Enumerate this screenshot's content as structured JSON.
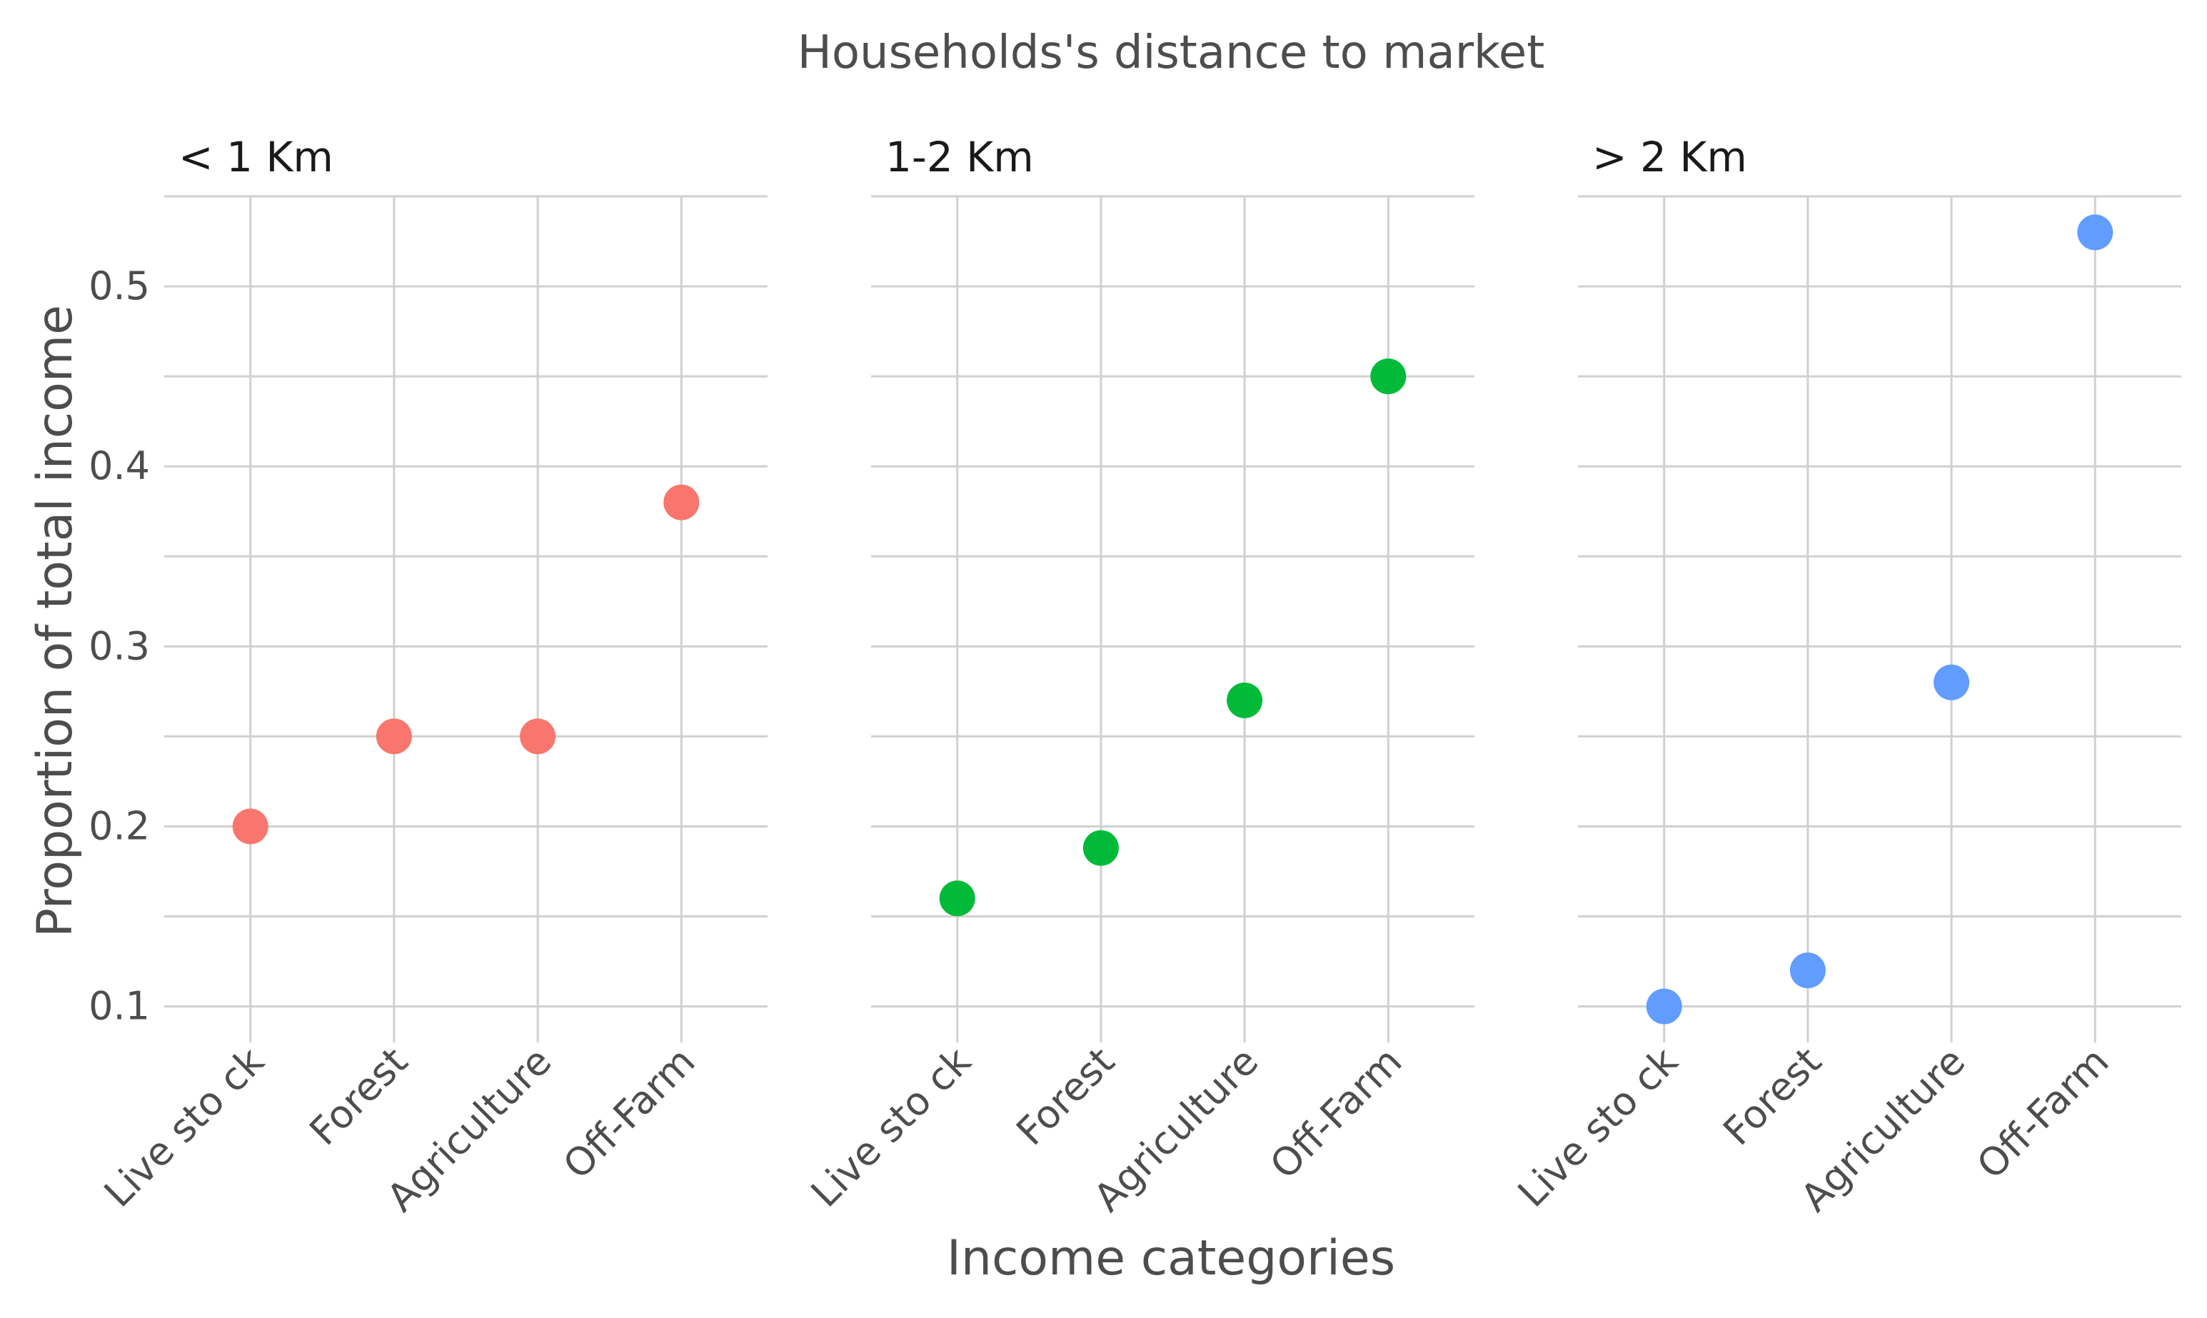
{
  "chart_data": {
    "type": "scatter",
    "title": "Households's distance to market",
    "xlabel": "Income categories",
    "ylabel": "Proportion of total income",
    "categories": [
      "Livestock",
      "Forest",
      "Agriculture",
      "Off-Farm"
    ],
    "x_tick_labels": [
      "Live sto ck",
      "Forest",
      "Agriculture",
      "Off-Farm"
    ],
    "y_ticks": [
      0.1,
      0.2,
      0.3,
      0.4,
      0.5
    ],
    "y_tick_labels": [
      "0.1",
      "0.2",
      "0.3",
      "0.4",
      "0.5"
    ],
    "ylim": [
      0.08,
      0.55
    ],
    "grid": true,
    "legend": "none",
    "facets": [
      {
        "label": "< 1 Km",
        "color": "#F8766D",
        "values": [
          0.2,
          0.25,
          0.25,
          0.38
        ]
      },
      {
        "label": "1-2 Km",
        "color": "#00BA38",
        "values": [
          0.16,
          0.188,
          0.27,
          0.45
        ]
      },
      {
        "label": "> 2 Km",
        "color": "#619CFF",
        "values": [
          0.1,
          0.12,
          0.28,
          0.53
        ]
      }
    ]
  }
}
